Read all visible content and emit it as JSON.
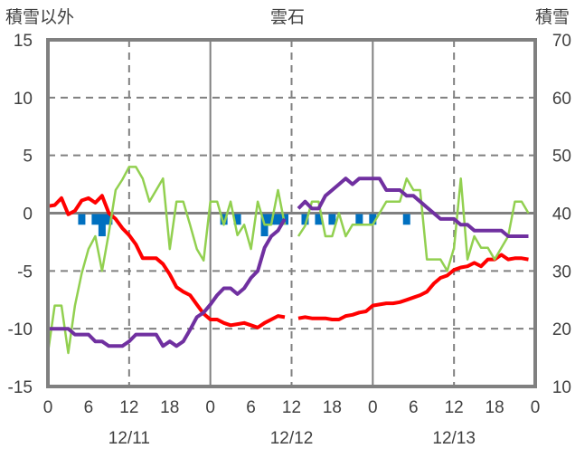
{
  "chart_data": {
    "type": "line",
    "title": "雲石",
    "left_axis_label": "積雪以外",
    "right_axis_label": "積雪",
    "left_ylim": [
      -15,
      15
    ],
    "left_ticks": [
      "15",
      "10",
      "5",
      "0",
      "-5",
      "-10",
      "-15"
    ],
    "right_ylim": [
      10,
      70
    ],
    "right_ticks": [
      "70",
      "60",
      "50",
      "40",
      "30",
      "20",
      "10"
    ],
    "x_hours": 72,
    "x_tick_labels": [
      "0",
      "6",
      "12",
      "18",
      "0",
      "6",
      "12",
      "18",
      "0",
      "6",
      "12",
      "18",
      "0"
    ],
    "date_labels": [
      "12/11",
      "12/12",
      "12/13"
    ],
    "grid": true,
    "series": [
      {
        "name": "red",
        "axis": "left",
        "color": "#ff0000",
        "values": [
          0.6,
          0.7,
          1.3,
          -0.1,
          0.2,
          1.1,
          1.3,
          0.9,
          1.5,
          0.0,
          -0.5,
          -1.3,
          -1.9,
          -2.7,
          -3.9,
          -3.9,
          -3.9,
          -4.4,
          -5.3,
          -6.4,
          -6.8,
          -7.1,
          -7.9,
          -8.7,
          -9.2,
          -9.2,
          -9.5,
          -9.7,
          -9.6,
          -9.5,
          -9.7,
          -9.9,
          -9.5,
          -9.2,
          -8.9,
          -9.0,
          null,
          -9.1,
          -9.0,
          -9.1,
          -9.1,
          -9.1,
          -9.2,
          -9.2,
          -8.9,
          -8.8,
          -8.6,
          -8.5,
          -8.0,
          -7.9,
          -7.8,
          -7.8,
          -7.7,
          -7.5,
          -7.3,
          -7.1,
          -6.8,
          -6.1,
          -5.6,
          -5.4,
          -4.9,
          -4.7,
          -4.6,
          -4.3,
          -4.6,
          -4.0,
          -4.0,
          -3.6,
          -4.0,
          -3.9,
          -3.9,
          -4.0
        ]
      },
      {
        "name": "green",
        "axis": "left",
        "color": "#92d050",
        "values": [
          -12.1,
          -8,
          -8,
          -12.1,
          -8,
          -5.2,
          -3.1,
          -2,
          -5,
          -1.7,
          2,
          2.9,
          4,
          4,
          3,
          1,
          2,
          3,
          -3.1,
          1,
          1,
          -1,
          -3.1,
          -4.1,
          1,
          1,
          -1,
          1,
          -1.9,
          -1,
          -3.1,
          1,
          -1,
          -1,
          2,
          -1,
          null,
          -2,
          -1.1,
          1,
          1,
          -2,
          -2,
          0,
          -2,
          -1,
          -1,
          -1,
          -1,
          0,
          1,
          1,
          1,
          3,
          2,
          2,
          -4,
          -4,
          -4,
          -5,
          -3,
          3,
          -4,
          -2,
          -3,
          -3,
          -4,
          -3,
          -2,
          1,
          1,
          0
        ]
      },
      {
        "name": "purple",
        "axis": "right",
        "color": "#7030a0",
        "values": [
          20,
          20,
          20,
          20,
          19,
          19,
          19,
          17.8,
          17.8,
          17,
          17,
          17,
          17.8,
          19,
          19,
          19,
          19,
          17,
          17.8,
          17,
          17.8,
          19.8,
          22,
          22.8,
          24.2,
          25.8,
          27,
          27,
          26,
          27,
          28.8,
          30,
          34,
          36,
          37,
          39,
          null,
          40.8,
          42,
          40.8,
          40.8,
          43,
          44,
          45,
          46,
          45,
          46,
          46,
          46,
          46,
          44,
          44,
          44,
          43,
          43,
          42,
          41,
          40,
          39,
          39,
          39,
          38,
          38,
          37,
          37,
          37,
          37,
          37,
          36,
          36,
          36,
          36
        ]
      }
    ],
    "bars": {
      "name": "blue",
      "axis": "left",
      "color": "#0070c0",
      "hours": [
        5,
        7,
        8,
        9,
        26,
        28,
        32,
        33,
        34,
        35,
        38,
        40,
        42,
        46,
        48,
        53
      ],
      "values": [
        -1,
        -1,
        -2,
        -1,
        -1,
        -1,
        -2,
        -1,
        -1,
        -1,
        -1,
        -1,
        -1,
        -1,
        -1,
        -1
      ]
    }
  }
}
